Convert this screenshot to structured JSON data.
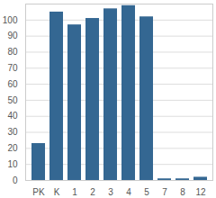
{
  "chart_data": {
    "type": "bar",
    "categories": [
      "PK",
      "K",
      "1",
      "2",
      "3",
      "4",
      "5",
      "7",
      "8",
      "12"
    ],
    "values": [
      23,
      105,
      97,
      101,
      107,
      109,
      102,
      1,
      1,
      2
    ],
    "color": "#346792",
    "ylim": [
      0,
      110
    ],
    "yticks": [
      0,
      10,
      20,
      30,
      40,
      50,
      60,
      70,
      80,
      90,
      100
    ],
    "grid": true
  }
}
